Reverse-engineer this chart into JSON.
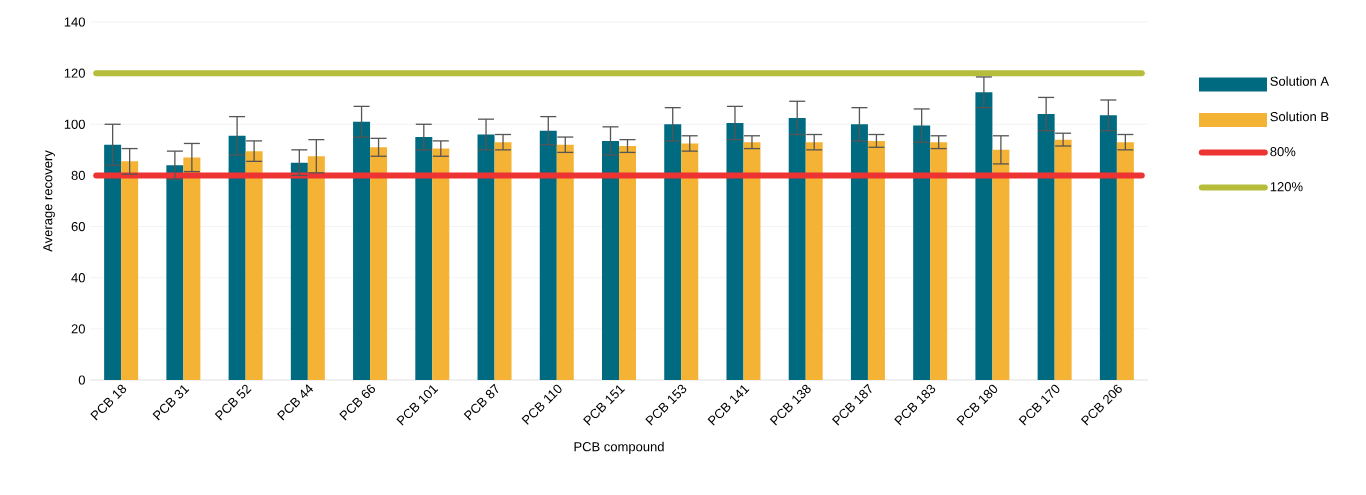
{
  "chart_data": {
    "type": "bar",
    "xlabel": "PCB compound",
    "ylabel": "Average recovery",
    "categories": [
      "PCB 18",
      "PCB 31",
      "PCB 52",
      "PCB 44",
      "PCB 66",
      "PCB 101",
      "PCB 87",
      "PCB 110",
      "PCB 151",
      "PCB 153",
      "PCB 141",
      "PCB 138",
      "PCB 187",
      "PCB 183",
      "PCB 180",
      "PCB 170",
      "PCB 206"
    ],
    "series": [
      {
        "name": "Solution A",
        "color": "#006a80",
        "values": [
          92,
          84,
          95.5,
          85,
          101,
          95,
          96,
          97.5,
          93.5,
          100,
          100.5,
          102.5,
          100,
          99.5,
          112.5,
          104,
          103.5
        ],
        "errors": [
          8,
          5.5,
          7.5,
          5,
          6,
          5,
          6,
          5.5,
          5.5,
          6.5,
          6.5,
          6.5,
          6.5,
          6.5,
          6,
          6.5,
          6
        ]
      },
      {
        "name": "Solution B",
        "color": "#f5b335",
        "values": [
          85.5,
          87,
          89.5,
          87.5,
          91,
          90.5,
          93,
          92,
          91.5,
          92.5,
          93,
          93,
          93.5,
          93,
          90,
          94,
          93
        ],
        "errors": [
          5,
          5.5,
          4,
          6.5,
          3.5,
          3,
          3,
          3,
          2.5,
          3,
          2.5,
          3,
          2.5,
          2.5,
          5.5,
          2.5,
          3
        ]
      }
    ],
    "ref_lines": [
      {
        "axis": "y",
        "value": 80,
        "label": "80%",
        "color": "#ee3333"
      },
      {
        "axis": "y",
        "value": 120,
        "label": "120%",
        "color": "#b5bd3a"
      }
    ],
    "ylim": [
      0,
      140
    ],
    "yticks": [
      0,
      20,
      40,
      60,
      80,
      100,
      120,
      140
    ],
    "grid": "y",
    "legend": "right"
  }
}
